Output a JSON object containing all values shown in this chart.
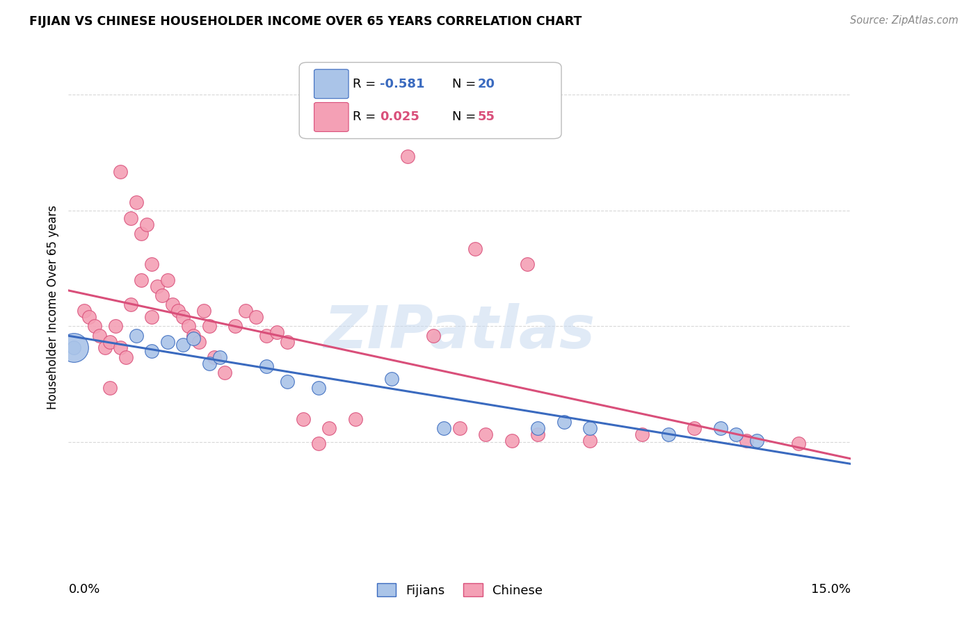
{
  "title": "FIJIAN VS CHINESE HOUSEHOLDER INCOME OVER 65 YEARS CORRELATION CHART",
  "source": "Source: ZipAtlas.com",
  "ylabel": "Householder Income Over 65 years",
  "background_color": "#ffffff",
  "grid_color": "#d8d8d8",
  "fijian_color": "#aac4e8",
  "chinese_color": "#f4a0b5",
  "fijian_line_color": "#3a6abf",
  "chinese_line_color": "#d94f7a",
  "fijian_R": -0.581,
  "fijian_N": 20,
  "chinese_R": 0.025,
  "chinese_N": 55,
  "watermark": "ZIPatlas",
  "xmin": 0.0,
  "xmax": 0.15,
  "ymin": 0.0,
  "ymax": 162500,
  "yticks": [
    37500,
    75000,
    112500,
    150000
  ],
  "fijian_x": [
    0.001,
    0.013,
    0.016,
    0.019,
    0.022,
    0.024,
    0.027,
    0.029,
    0.038,
    0.042,
    0.048,
    0.062,
    0.072,
    0.09,
    0.095,
    0.1,
    0.115,
    0.125,
    0.128,
    0.132
  ],
  "fijian_y": [
    68000,
    72000,
    67000,
    70000,
    69000,
    71000,
    63000,
    65000,
    62000,
    57000,
    55000,
    58000,
    42000,
    42000,
    44000,
    42000,
    40000,
    42000,
    40000,
    38000
  ],
  "chinese_x": [
    0.003,
    0.004,
    0.005,
    0.006,
    0.007,
    0.008,
    0.009,
    0.01,
    0.011,
    0.012,
    0.013,
    0.014,
    0.015,
    0.016,
    0.017,
    0.018,
    0.019,
    0.02,
    0.021,
    0.022,
    0.023,
    0.024,
    0.025,
    0.026,
    0.027,
    0.028,
    0.03,
    0.032,
    0.034,
    0.036,
    0.038,
    0.04,
    0.042,
    0.045,
    0.05,
    0.055,
    0.065,
    0.07,
    0.075,
    0.08,
    0.085,
    0.09,
    0.1,
    0.11,
    0.12,
    0.13,
    0.14,
    0.078,
    0.088,
    0.048,
    0.01,
    0.012,
    0.014,
    0.016,
    0.008
  ],
  "chinese_y": [
    80000,
    78000,
    75000,
    72000,
    68000,
    70000,
    75000,
    68000,
    65000,
    110000,
    115000,
    105000,
    108000,
    95000,
    88000,
    85000,
    90000,
    82000,
    80000,
    78000,
    75000,
    72000,
    70000,
    80000,
    75000,
    65000,
    60000,
    75000,
    80000,
    78000,
    72000,
    73000,
    70000,
    45000,
    42000,
    45000,
    130000,
    72000,
    42000,
    40000,
    38000,
    40000,
    38000,
    40000,
    42000,
    38000,
    37000,
    100000,
    95000,
    37000,
    125000,
    82000,
    90000,
    78000,
    55000
  ]
}
